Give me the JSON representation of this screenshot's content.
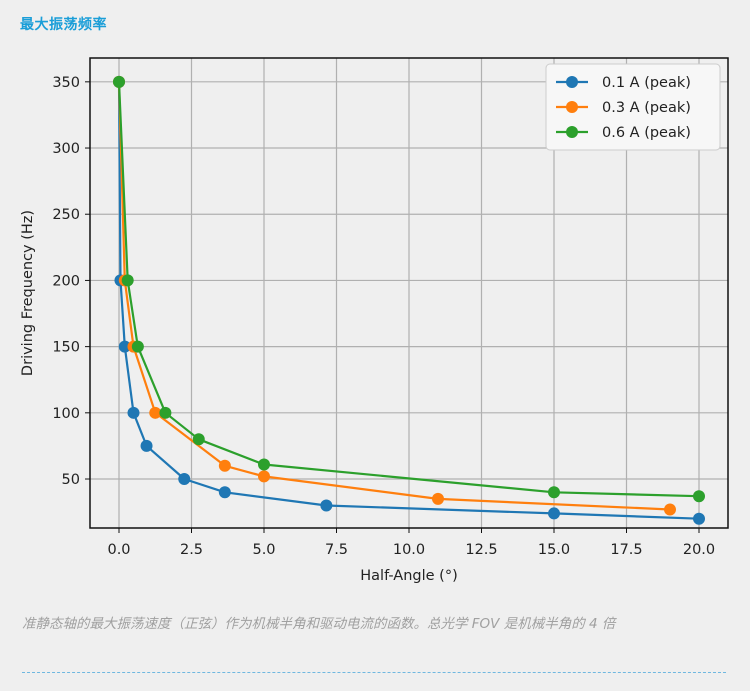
{
  "heading": "最大振荡频率",
  "caption": "准静态轴的最大振荡速度（正弦）作为机械半角和驱动电流的函数。总光学 FOV 是机械半角的 4 倍",
  "chart_data": {
    "type": "line",
    "xlabel": "Half-Angle (°)",
    "ylabel": "Driving Frequency (Hz)",
    "xlim": [
      -1,
      21
    ],
    "ylim": [
      13,
      368
    ],
    "xticks": [
      0.0,
      2.5,
      5.0,
      7.5,
      10.0,
      12.5,
      15.0,
      17.5,
      20.0
    ],
    "xtick_labels": [
      "0.0",
      "2.5",
      "5.0",
      "7.5",
      "10.0",
      "12.5",
      "15.0",
      "17.5",
      "20.0"
    ],
    "yticks": [
      50,
      100,
      150,
      200,
      250,
      300,
      350
    ],
    "ytick_labels": [
      "50",
      "100",
      "150",
      "200",
      "250",
      "300",
      "350"
    ],
    "grid": true,
    "legend_position": "top-right",
    "series": [
      {
        "name": "0.1 A (peak)",
        "color": "#1f77b4",
        "x": [
          0.0,
          0.05,
          0.2,
          0.5,
          0.95,
          2.25,
          3.65,
          7.15,
          15.0,
          20.0
        ],
        "y": [
          350,
          200,
          150,
          100,
          75,
          50,
          40,
          30,
          24,
          20
        ]
      },
      {
        "name": "0.3 A (peak)",
        "color": "#ff7f0e",
        "x": [
          0.0,
          0.2,
          0.5,
          1.25,
          3.65,
          5.0,
          11.0,
          19.0
        ],
        "y": [
          350,
          200,
          150,
          100,
          60,
          52,
          35,
          27
        ]
      },
      {
        "name": "0.6 A (peak)",
        "color": "#2ca02c",
        "x": [
          0.0,
          0.3,
          0.65,
          1.6,
          2.75,
          5.0,
          15.0,
          20.0
        ],
        "y": [
          350,
          200,
          150,
          100,
          80,
          61,
          40,
          37
        ]
      }
    ]
  }
}
